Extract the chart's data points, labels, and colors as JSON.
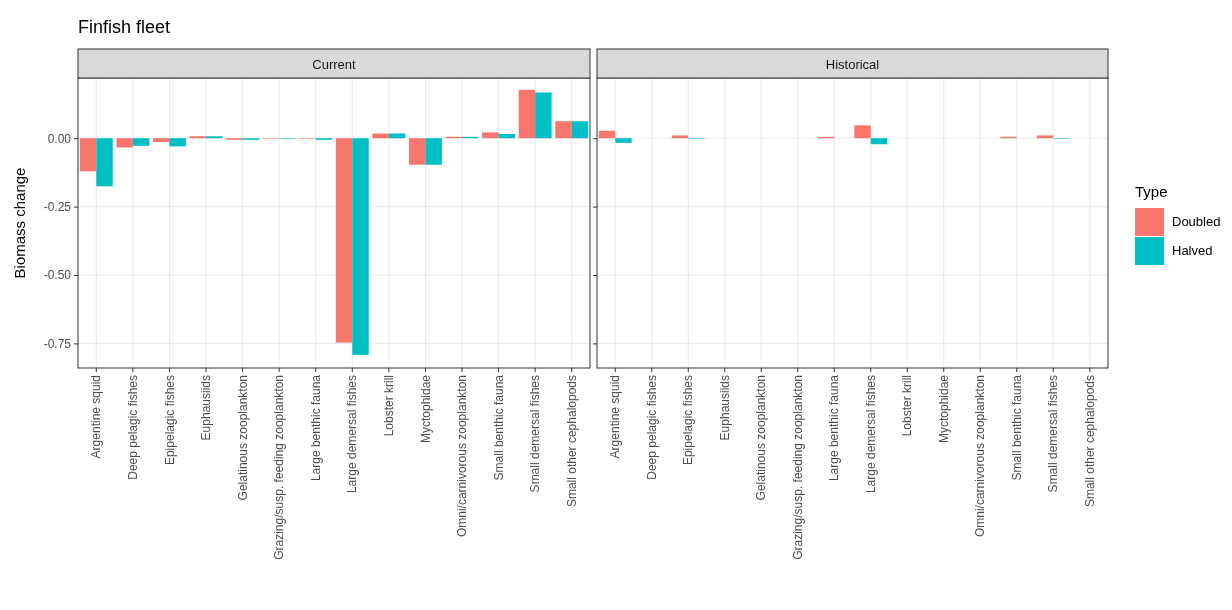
{
  "chart_data": [
    {
      "type": "bar",
      "title": "Finfish fleet",
      "subtitle": "Current",
      "ylabel": "Biomass change",
      "categories": [
        "Argentine squid",
        "Deep pelagic fishes",
        "Epipelagic fishes",
        "Euphausiids",
        "Gelatinous zooplankton",
        "Grazing/susp. feeding zooplankton",
        "Large benthic fauna",
        "Large demersal fishes",
        "Lobster krill",
        "Myctophidae",
        "Omni/carnivorous zooplankton",
        "Small benthic fauna",
        "Small demersal fishes",
        "Small other cephalopods"
      ],
      "series": [
        {
          "name": "Doubled",
          "color": "#f8766d",
          "values": [
            -0.121,
            -0.034,
            -0.014,
            0.007,
            -0.006,
            -0.002,
            -0.002,
            -0.747,
            0.017,
            -0.097,
            0.005,
            0.021,
            0.177,
            0.062
          ]
        },
        {
          "name": "Halved",
          "color": "#00bfc4",
          "values": [
            -0.176,
            -0.028,
            -0.03,
            0.007,
            -0.006,
            -0.002,
            -0.006,
            -0.792,
            0.017,
            -0.097,
            0.005,
            0.015,
            0.167,
            0.062
          ]
        }
      ],
      "ylim": [
        -0.84,
        0.22
      ],
      "yticks": [
        {
          "value": -0.75,
          "label": "-0.75"
        },
        {
          "value": -0.5,
          "label": "-0.50"
        },
        {
          "value": -0.25,
          "label": "-0.25"
        },
        {
          "value": 0,
          "label": "0.00"
        }
      ],
      "grid": true,
      "legend": "right",
      "legend_title": "Type"
    },
    {
      "type": "bar",
      "subtitle": "Historical",
      "categories": [
        "Argentine squid",
        "Deep pelagic fishes",
        "Epipelagic fishes",
        "Euphausiids",
        "Gelatinous zooplankton",
        "Grazing/susp. feeding zooplankton",
        "Large benthic fauna",
        "Large demersal fishes",
        "Lobster krill",
        "Myctophidae",
        "Omni/carnivorous zooplankton",
        "Small benthic fauna",
        "Small demersal fishes",
        "Small other cephalopods"
      ],
      "series": [
        {
          "color": "#f8766d",
          "values": [
            0.027,
            0,
            0.01,
            0,
            0,
            0,
            0.005,
            0.047,
            0,
            0,
            0,
            0.005,
            0.01,
            0
          ]
        },
        {
          "color": "#00bfc4",
          "values": [
            -0.017,
            0,
            -0.002,
            0,
            0,
            0,
            0,
            -0.022,
            0,
            0,
            0,
            0,
            -0.002,
            0
          ]
        }
      ],
      "ylim": [
        -0.84,
        0.22
      ],
      "yticks": [
        -0.75,
        -0.5,
        -0.25,
        0
      ],
      "grid": true,
      "tick_labels": "x"
    }
  ]
}
